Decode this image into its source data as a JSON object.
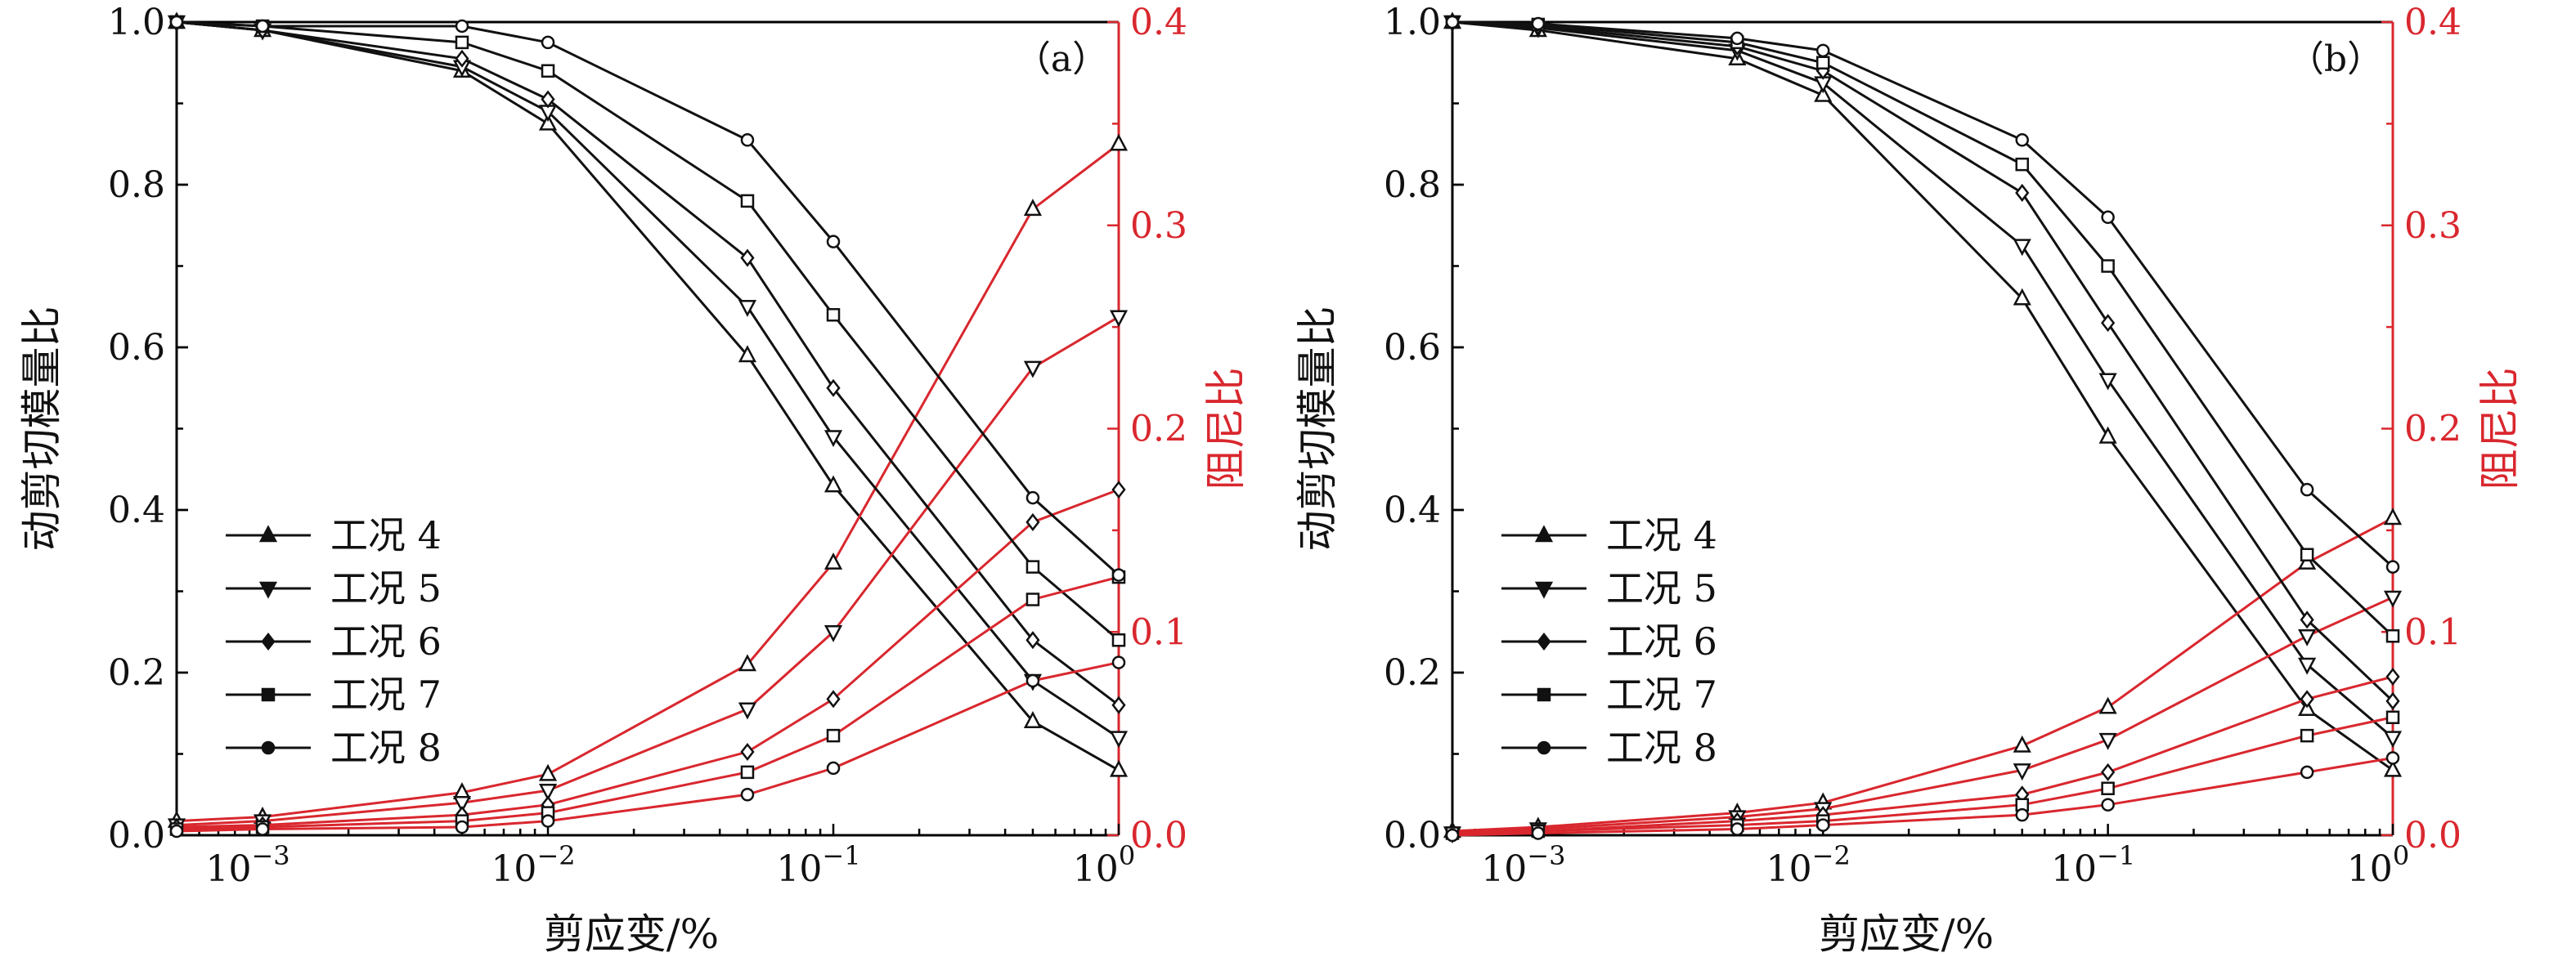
{
  "chart_data": [
    {
      "type": "line",
      "panel_label": "（a）",
      "xlabel": "剪应变/%",
      "ylabel_left": "动剪切模量比",
      "ylabel_right": "阻尼比",
      "x_scale": "log",
      "xlim": [
        0.0005,
        1
      ],
      "ylim_left": [
        0,
        1.0
      ],
      "ylim_right": [
        0,
        0.4
      ],
      "x_ticks": [
        {
          "value": 0.001,
          "base": "10",
          "exp": "−3"
        },
        {
          "value": 0.01,
          "base": "10",
          "exp": "−2"
        },
        {
          "value": 0.1,
          "base": "10",
          "exp": "−1"
        },
        {
          "value": 1,
          "base": "10",
          "exp": "0"
        }
      ],
      "y_ticks_left": [
        "0.0",
        "0.2",
        "0.4",
        "0.6",
        "0.8",
        "1.0"
      ],
      "y_ticks_right": [
        "0.0",
        "0.1",
        "0.2",
        "0.3",
        "0.4"
      ],
      "legend_position": "left-middle",
      "x": [
        0.0005,
        0.001,
        0.005,
        0.01,
        0.05,
        0.1,
        0.5,
        1
      ],
      "series": [
        {
          "name": "工况 4",
          "marker": "triangle-up",
          "modulus_ratio": [
            1.0,
            0.99,
            0.94,
            0.875,
            0.59,
            0.43,
            0.14,
            0.08
          ],
          "damping_ratio": [
            0.007,
            0.009,
            0.021,
            0.03,
            0.084,
            0.134,
            0.308,
            0.34
          ]
        },
        {
          "name": "工况 5",
          "marker": "triangle-down",
          "modulus_ratio": [
            1.0,
            0.99,
            0.945,
            0.89,
            0.65,
            0.49,
            0.19,
            0.12
          ],
          "damping_ratio": [
            0.005,
            0.007,
            0.016,
            0.022,
            0.062,
            0.1,
            0.23,
            0.255
          ]
        },
        {
          "name": "工况 6",
          "marker": "diamond",
          "modulus_ratio": [
            1.0,
            0.99,
            0.955,
            0.905,
            0.71,
            0.55,
            0.24,
            0.16
          ],
          "damping_ratio": [
            0.004,
            0.005,
            0.01,
            0.015,
            0.041,
            0.067,
            0.154,
            0.17
          ]
        },
        {
          "name": "工况 7",
          "marker": "square",
          "modulus_ratio": [
            1.0,
            0.995,
            0.975,
            0.94,
            0.78,
            0.64,
            0.33,
            0.24
          ],
          "damping_ratio": [
            0.003,
            0.004,
            0.007,
            0.011,
            0.031,
            0.049,
            0.116,
            0.127
          ]
        },
        {
          "name": "工况 8",
          "marker": "circle",
          "modulus_ratio": [
            1.0,
            0.995,
            0.995,
            0.975,
            0.855,
            0.73,
            0.415,
            0.32
          ],
          "damping_ratio": [
            0.002,
            0.003,
            0.004,
            0.007,
            0.02,
            0.033,
            0.076,
            0.085
          ]
        }
      ]
    },
    {
      "type": "line",
      "panel_label": "（b）",
      "xlabel": "剪应变/%",
      "ylabel_left": "动剪切模量比",
      "ylabel_right": "阻尼比",
      "x_scale": "log",
      "xlim": [
        0.0005,
        1
      ],
      "ylim_left": [
        0,
        1.0
      ],
      "ylim_right": [
        0,
        0.4
      ],
      "x_ticks": [
        {
          "value": 0.001,
          "base": "10",
          "exp": "−3"
        },
        {
          "value": 0.01,
          "base": "10",
          "exp": "−2"
        },
        {
          "value": 0.1,
          "base": "10",
          "exp": "−1"
        },
        {
          "value": 1,
          "base": "10",
          "exp": "0"
        }
      ],
      "y_ticks_left": [
        "0.0",
        "0.2",
        "0.4",
        "0.6",
        "0.8",
        "1.0"
      ],
      "y_ticks_right": [
        "0.0",
        "0.1",
        "0.2",
        "0.3",
        "0.4"
      ],
      "legend_position": "left-middle",
      "x": [
        0.0005,
        0.001,
        0.005,
        0.01,
        0.05,
        0.1,
        0.5,
        1
      ],
      "series": [
        {
          "name": "工况 4",
          "marker": "triangle-up",
          "modulus_ratio": [
            1.0,
            0.99,
            0.955,
            0.91,
            0.66,
            0.49,
            0.155,
            0.08
          ],
          "damping_ratio": [
            0.002,
            0.004,
            0.011,
            0.016,
            0.044,
            0.063,
            0.134,
            0.156
          ]
        },
        {
          "name": "工况 5",
          "marker": "triangle-down",
          "modulus_ratio": [
            1.0,
            0.993,
            0.965,
            0.925,
            0.725,
            0.56,
            0.21,
            0.12
          ],
          "damping_ratio": [
            0.001,
            0.003,
            0.009,
            0.013,
            0.032,
            0.047,
            0.098,
            0.117
          ]
        },
        {
          "name": "工况 6",
          "marker": "diamond",
          "modulus_ratio": [
            1.0,
            0.995,
            0.97,
            0.94,
            0.79,
            0.63,
            0.265,
            0.165
          ],
          "damping_ratio": [
            0.001,
            0.002,
            0.007,
            0.01,
            0.02,
            0.031,
            0.067,
            0.078
          ]
        },
        {
          "name": "工况 7",
          "marker": "square",
          "modulus_ratio": [
            1.0,
            0.997,
            0.975,
            0.95,
            0.825,
            0.7,
            0.345,
            0.245
          ],
          "damping_ratio": [
            0.001,
            0.002,
            0.005,
            0.007,
            0.015,
            0.023,
            0.049,
            0.058
          ]
        },
        {
          "name": "工况 8",
          "marker": "circle",
          "modulus_ratio": [
            1.0,
            0.998,
            0.98,
            0.965,
            0.855,
            0.76,
            0.425,
            0.33
          ],
          "damping_ratio": [
            0.0,
            0.001,
            0.003,
            0.005,
            0.01,
            0.015,
            0.031,
            0.038
          ]
        }
      ]
    }
  ]
}
